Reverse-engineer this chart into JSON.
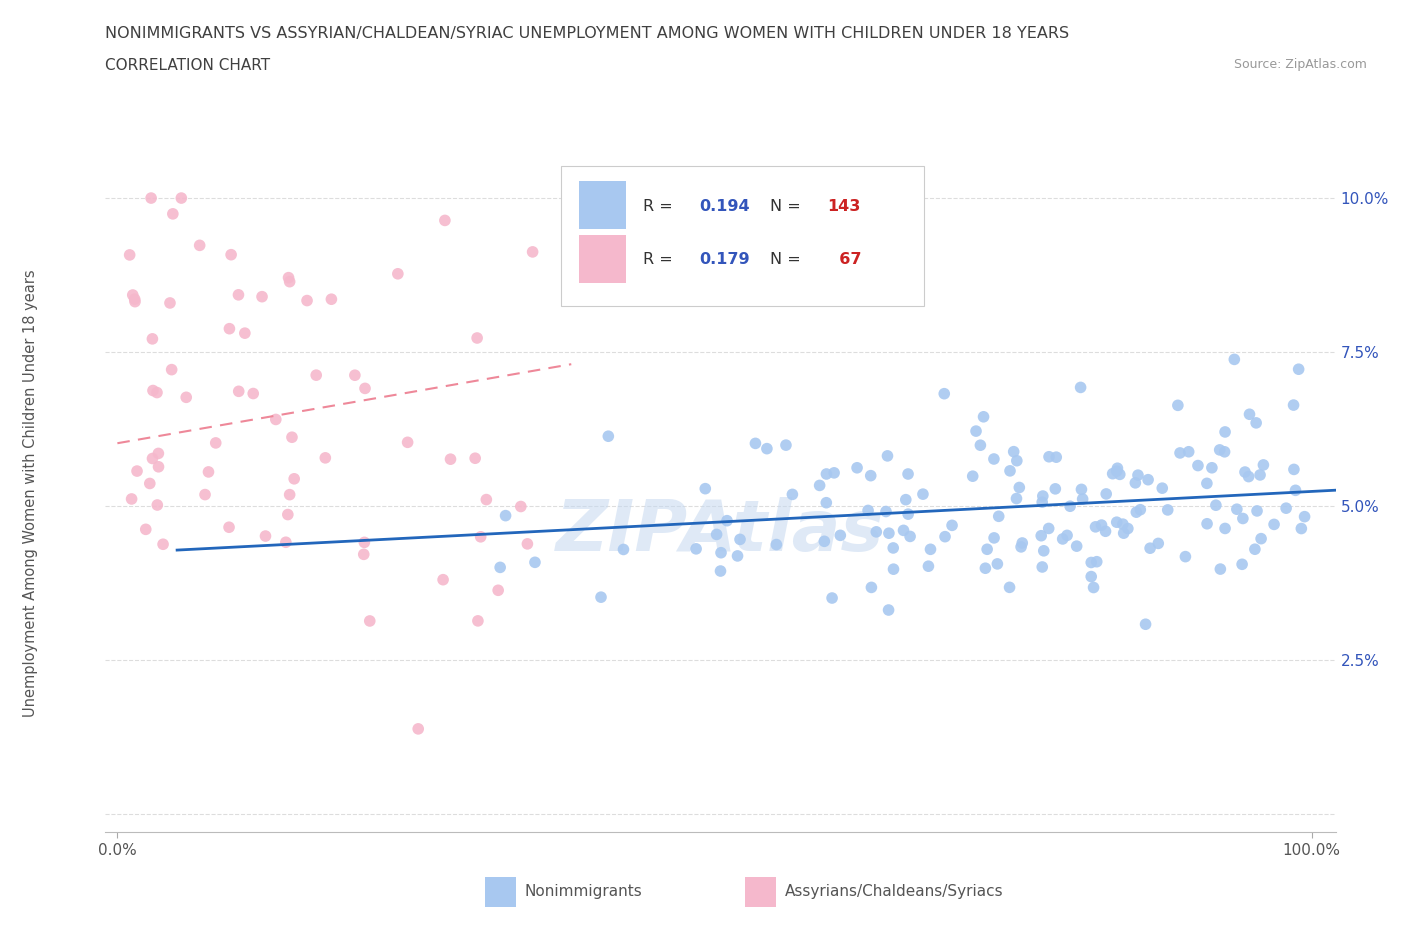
{
  "title": "NONIMMIGRANTS VS ASSYRIAN/CHALDEAN/SYRIAC UNEMPLOYMENT AMONG WOMEN WITH CHILDREN UNDER 18 YEARS",
  "subtitle": "CORRELATION CHART",
  "source": "Source: ZipAtlas.com",
  "ylabel": "Unemployment Among Women with Children Under 18 years",
  "watermark": "ZIPAtlas",
  "R_blue": 0.194,
  "N_blue": 143,
  "R_pink": 0.179,
  "N_pink": 67,
  "blue_color": "#a8c8f0",
  "pink_color": "#f5b8cc",
  "trend_blue_color": "#2266bb",
  "trend_pink_color": "#ee8899",
  "legend_R_color": "#3355bb",
  "legend_N_color": "#cc2222",
  "title_color": "#404040",
  "source_color": "#999999",
  "ytick_color": "#3355bb",
  "xtick_color": "#555555",
  "ylabel_color": "#555555",
  "background": "#ffffff",
  "grid_color": "#dddddd",
  "legend_border": "#cccccc"
}
